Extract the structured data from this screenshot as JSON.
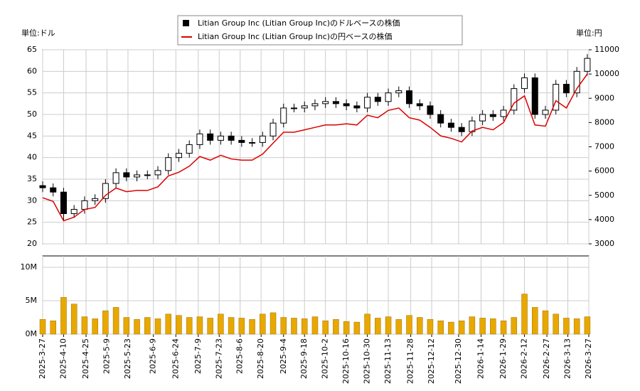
{
  "chart_data": [
    {
      "type": "candlestick",
      "unit_label": "単位:ドル",
      "unit_label_right": "単位:円",
      "x": [
        "2025-3-27",
        "2025-4-3",
        "2025-4-10",
        "2025-4-17",
        "2025-4-24",
        "2025-5-1",
        "2025-5-8",
        "2025-5-15",
        "2025-5-22",
        "2025-5-29",
        "2025-6-5",
        "2025-6-12",
        "2025-6-19",
        "2025-6-26",
        "2025-7-3",
        "2025-7-10",
        "2025-7-17",
        "2025-7-24",
        "2025-7-31",
        "2025-8-7",
        "2025-8-14",
        "2025-8-21",
        "2025-8-28",
        "2025-9-4",
        "2025-9-11",
        "2025-9-18",
        "2025-9-25",
        "2025-10-2",
        "2025-10-9",
        "2025-10-16",
        "2025-10-23",
        "2025-10-30",
        "2025-11-6",
        "2025-11-13",
        "2025-11-20",
        "2025-11-27",
        "2025-12-4",
        "2025-12-11",
        "2025-12-18",
        "2025-12-25",
        "2026-1-1",
        "2026-1-8",
        "2026-1-15",
        "2026-1-22",
        "2026-1-29",
        "2026-2-5",
        "2026-2-12",
        "2026-2-19",
        "2026-2-26",
        "2026-3-5",
        "2026-3-12",
        "2026-3-19",
        "2026-3-26"
      ],
      "series": [
        {
          "name": "Litian Group Inc (Litian Group Inc)のドルベースの株価",
          "color": "#000000",
          "open": [
            33.5,
            33,
            32,
            27,
            28,
            30,
            30.5,
            34,
            36.5,
            35.5,
            36,
            36,
            37,
            40,
            41,
            43,
            45.5,
            44,
            45,
            44,
            43.5,
            43.5,
            45,
            48,
            51.5,
            51.5,
            52,
            52.5,
            53,
            52.5,
            52,
            51.5,
            54,
            53,
            55,
            55.5,
            52.5,
            52,
            50,
            48,
            47,
            46,
            48.5,
            50,
            49.5,
            51,
            56,
            58.5,
            50,
            51,
            57,
            55,
            60
          ],
          "high": [
            34.5,
            34,
            33,
            29,
            31,
            31.5,
            35,
            37.5,
            37.5,
            37,
            37,
            38,
            41,
            42,
            44,
            46.5,
            46.5,
            46,
            46,
            45,
            44.5,
            46,
            49,
            52.5,
            52.5,
            53,
            53.5,
            54,
            54,
            53.5,
            53,
            55,
            55,
            56,
            56.5,
            56.5,
            53.5,
            53,
            51,
            49,
            48,
            49.5,
            51,
            51,
            52,
            57,
            59.5,
            59.5,
            52,
            58,
            58,
            61,
            64
          ],
          "low": [
            32,
            31,
            25.5,
            26,
            27,
            29,
            29.5,
            33,
            34.5,
            34.5,
            35,
            35,
            36,
            39,
            40,
            42,
            43,
            43,
            43,
            42.5,
            42.5,
            42.5,
            44,
            47,
            50.5,
            50.5,
            51,
            51.5,
            51.5,
            51,
            50.5,
            50.5,
            52,
            52,
            54,
            51.5,
            51,
            49,
            47,
            46,
            45,
            45,
            47.5,
            48.5,
            48.5,
            50,
            55,
            49,
            49,
            50,
            54,
            54,
            59
          ],
          "close": [
            33,
            32,
            27,
            28,
            30,
            30.5,
            34,
            36.5,
            35.5,
            36,
            36,
            37,
            40,
            41,
            43,
            45.5,
            44,
            45,
            44,
            43.5,
            43.5,
            45,
            48,
            51.5,
            51.5,
            52,
            52.5,
            53,
            52.5,
            52,
            51.5,
            54,
            53,
            55,
            55.5,
            52.5,
            52,
            50,
            48,
            47,
            46,
            48.5,
            50,
            49.5,
            51,
            56,
            58.5,
            50,
            51,
            57,
            55,
            60,
            63
          ]
        },
        {
          "name": "Litian Group Inc (Litian Group Inc)の円ベースの株価",
          "color": "#dd0000",
          "axis": "y2",
          "values": [
            4900,
            4750,
            3950,
            4100,
            4420,
            4500,
            5000,
            5300,
            5150,
            5200,
            5200,
            5350,
            5800,
            5950,
            6200,
            6600,
            6450,
            6650,
            6500,
            6450,
            6450,
            6700,
            7150,
            7600,
            7600,
            7700,
            7800,
            7900,
            7900,
            7950,
            7900,
            8300,
            8200,
            8500,
            8600,
            8200,
            8100,
            7800,
            7450,
            7350,
            7200,
            7650,
            7800,
            7700,
            8000,
            8800,
            9100,
            7900,
            7850,
            8900,
            8600,
            9400,
            10000
          ]
        }
      ],
      "xlim": [
        "2025-3-27",
        "2026-3-27"
      ],
      "ylim": [
        20,
        65
      ],
      "yticks": [
        20,
        25,
        30,
        35,
        40,
        45,
        50,
        55,
        60,
        65
      ],
      "y2lim": [
        3000,
        11000
      ],
      "y2ticks": [
        3000,
        4000,
        5000,
        6000,
        7000,
        8000,
        9000,
        10000,
        11000
      ],
      "grid": true
    },
    {
      "type": "bar",
      "color": "#e8a800",
      "x": [
        "2025-3-27",
        "2025-4-3",
        "2025-4-10",
        "2025-4-17",
        "2025-4-24",
        "2025-5-1",
        "2025-5-8",
        "2025-5-15",
        "2025-5-22",
        "2025-5-29",
        "2025-6-5",
        "2025-6-12",
        "2025-6-19",
        "2025-6-26",
        "2025-7-3",
        "2025-7-10",
        "2025-7-17",
        "2025-7-24",
        "2025-7-31",
        "2025-8-7",
        "2025-8-14",
        "2025-8-21",
        "2025-8-28",
        "2025-9-4",
        "2025-9-11",
        "2025-9-18",
        "2025-9-25",
        "2025-10-2",
        "2025-10-9",
        "2025-10-16",
        "2025-10-23",
        "2025-10-30",
        "2025-11-6",
        "2025-11-13",
        "2025-11-20",
        "2025-11-27",
        "2025-12-4",
        "2025-12-11",
        "2025-12-18",
        "2025-12-25",
        "2026-1-1",
        "2026-1-8",
        "2026-1-15",
        "2026-1-22",
        "2026-1-29",
        "2026-2-5",
        "2026-2-12",
        "2026-2-19",
        "2026-2-26",
        "2026-3-5",
        "2026-3-12",
        "2026-3-19",
        "2026-3-26"
      ],
      "values": [
        2200000,
        2000000,
        5500000,
        4500000,
        2600000,
        2300000,
        3500000,
        4000000,
        2500000,
        2200000,
        2500000,
        2300000,
        3000000,
        2800000,
        2500000,
        2600000,
        2400000,
        3000000,
        2500000,
        2400000,
        2200000,
        3000000,
        3200000,
        2500000,
        2400000,
        2300000,
        2600000,
        2000000,
        2200000,
        1900000,
        1800000,
        3000000,
        2400000,
        2600000,
        2200000,
        2800000,
        2500000,
        2200000,
        2000000,
        1800000,
        2000000,
        2600000,
        2400000,
        2300000,
        2000000,
        2500000,
        6000000,
        4000000,
        3500000,
        3000000,
        2400000,
        2300000,
        2600000
      ],
      "xlim": [
        "2025-3-27",
        "2026-3-27"
      ],
      "xticks": [
        "2025-3-27",
        "2025-4-10",
        "2025-4-25",
        "2025-5-9",
        "2025-5-23",
        "2025-6-9",
        "2025-6-24",
        "2025-7-9",
        "2025-7-23",
        "2025-8-6",
        "2025-8-20",
        "2025-9-4",
        "2025-9-18",
        "2025-10-2",
        "2025-10-16",
        "2025-10-30",
        "2025-11-13",
        "2025-11-28",
        "2025-12-12",
        "2025-12-30",
        "2026-1-14",
        "2026-1-29",
        "2026-2-12",
        "2026-2-27",
        "2026-3-13",
        "2026-3-27"
      ],
      "ylim": [
        0,
        11700000
      ],
      "yticks": [
        {
          "value": 0,
          "label": "0M"
        },
        {
          "value": 5000000,
          "label": "5M"
        },
        {
          "value": 10000000,
          "label": "10M"
        }
      ],
      "grid": true
    }
  ]
}
